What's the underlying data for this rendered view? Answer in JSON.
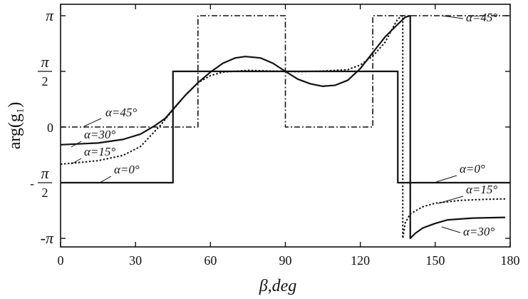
{
  "chart_data": {
    "type": "line",
    "xlabel": "β,deg",
    "ylabel": "arg(g₁)",
    "xlim": [
      0,
      180
    ],
    "ylim": [
      -3.1416,
      3.1416
    ],
    "grid": false,
    "x_ticks": [
      0,
      30,
      60,
      90,
      120,
      150,
      180
    ],
    "x_tick_labels": [
      "0",
      "30",
      "60",
      "90",
      "120",
      "150",
      "180"
    ],
    "y_ticks": [
      {
        "value": 3.1416,
        "label": "π"
      },
      {
        "value": 1.5708,
        "label_num": "π",
        "label_den": "2"
      },
      {
        "value": 0,
        "label": "0"
      },
      {
        "value": -1.5708,
        "label_sign": "-",
        "label_num": "π",
        "label_den": "2"
      },
      {
        "value": -3.1416,
        "label": "-π"
      }
    ],
    "series": [
      {
        "name": "α=0°",
        "style": "solid",
        "points": [
          [
            0,
            -1.5708
          ],
          [
            45,
            -1.5708
          ],
          [
            45,
            1.5708
          ],
          [
            135,
            1.5708
          ],
          [
            135,
            -1.5708
          ],
          [
            180,
            -1.5708
          ]
        ]
      },
      {
        "name": "α=45°",
        "style": "dashdot",
        "points": [
          [
            0,
            0
          ],
          [
            55,
            0
          ],
          [
            55,
            3.1416
          ],
          [
            90,
            3.1416
          ],
          [
            90,
            0
          ],
          [
            125,
            0
          ],
          [
            125,
            3.1416
          ],
          [
            180,
            3.1416
          ]
        ]
      },
      {
        "name": "α=30°",
        "style": "solid",
        "points": [
          [
            0,
            -0.5
          ],
          [
            15,
            -0.45
          ],
          [
            25,
            -0.35
          ],
          [
            32,
            -0.2
          ],
          [
            38,
            0.05
          ],
          [
            42,
            0.25
          ],
          [
            45,
            0.5
          ],
          [
            50,
            0.9
          ],
          [
            55,
            1.25
          ],
          [
            60,
            1.55
          ],
          [
            65,
            1.8
          ],
          [
            70,
            1.95
          ],
          [
            74,
            1.99
          ],
          [
            80,
            1.95
          ],
          [
            85,
            1.8
          ],
          [
            90,
            1.5708
          ],
          [
            95,
            1.35
          ],
          [
            100,
            1.22
          ],
          [
            105,
            1.15
          ],
          [
            110,
            1.18
          ],
          [
            115,
            1.32
          ],
          [
            120,
            1.65
          ],
          [
            125,
            2.1
          ],
          [
            130,
            2.55
          ],
          [
            135,
            2.9
          ],
          [
            138,
            3.1
          ],
          [
            140,
            3.1416
          ],
          [
            140,
            -3.1416
          ],
          [
            142,
            -3.0
          ],
          [
            145,
            -2.85
          ],
          [
            150,
            -2.72
          ],
          [
            155,
            -2.62
          ],
          [
            165,
            -2.57
          ],
          [
            178,
            -2.55
          ]
        ]
      },
      {
        "name": "α=15°",
        "style": "dotted",
        "points": [
          [
            0,
            -1.05
          ],
          [
            15,
            -0.95
          ],
          [
            25,
            -0.8
          ],
          [
            32,
            -0.55
          ],
          [
            36,
            -0.25
          ],
          [
            40,
            0.05
          ],
          [
            44,
            0.4
          ],
          [
            50,
            0.9
          ],
          [
            55,
            1.25
          ],
          [
            60,
            1.45
          ],
          [
            65,
            1.55
          ],
          [
            75,
            1.6
          ],
          [
            85,
            1.58
          ],
          [
            90,
            1.5708
          ],
          [
            95,
            1.56
          ],
          [
            105,
            1.58
          ],
          [
            115,
            1.62
          ],
          [
            120,
            1.75
          ],
          [
            125,
            2.0
          ],
          [
            130,
            2.4
          ],
          [
            133,
            2.8
          ],
          [
            135,
            3.05
          ],
          [
            137,
            3.1416
          ],
          [
            137,
            -3.1416
          ],
          [
            138,
            -2.7
          ],
          [
            140,
            -2.45
          ],
          [
            145,
            -2.25
          ],
          [
            150,
            -2.15
          ],
          [
            160,
            -2.07
          ],
          [
            170,
            -2.04
          ],
          [
            178,
            -2.03
          ]
        ]
      }
    ],
    "annotations": [
      {
        "text": "α=45°",
        "x": 3,
        "y": 0
      },
      {
        "text": "α=30°",
        "x": 3,
        "y": -0.5
      },
      {
        "text": "α=15°",
        "x": 3,
        "y": -1.05
      },
      {
        "text": "α=0°",
        "x": 3,
        "y": -1.5708
      },
      {
        "text": "α=45°",
        "x": 140,
        "y": 3.1416
      },
      {
        "text": "α=0°",
        "x": 140,
        "y": -1.5708
      },
      {
        "text": "α=15°",
        "x": 150,
        "y": -2.05
      },
      {
        "text": "α=30°",
        "x": 150,
        "y": -2.9
      }
    ]
  }
}
